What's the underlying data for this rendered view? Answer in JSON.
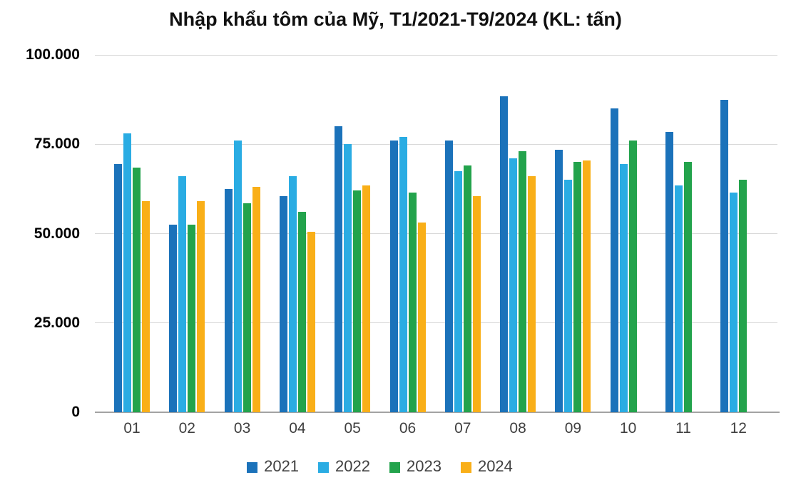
{
  "chart_data": {
    "type": "bar",
    "title": "Nhập khẩu tôm của Mỹ, T1/2021-T9/2024 (KL: tấn)",
    "unit": "tấn",
    "categories": [
      "01",
      "02",
      "03",
      "04",
      "05",
      "06",
      "07",
      "08",
      "09",
      "10",
      "11",
      "12"
    ],
    "series": [
      {
        "name": "2021",
        "color": "#1B72BA",
        "values": [
          69500,
          52500,
          62500,
          60500,
          80000,
          76000,
          76000,
          88500,
          73500,
          85000,
          78500,
          87500
        ]
      },
      {
        "name": "2022",
        "color": "#2AACE3",
        "values": [
          78000,
          66000,
          76000,
          66000,
          75000,
          77000,
          67500,
          71000,
          65000,
          69500,
          63500,
          61500
        ]
      },
      {
        "name": "2023",
        "color": "#23A34C",
        "values": [
          68500,
          52500,
          58500,
          56000,
          62000,
          61500,
          69000,
          73000,
          70000,
          76000,
          70000,
          65000
        ]
      },
      {
        "name": "2024",
        "color": "#F9AF18",
        "values": [
          59000,
          59000,
          63000,
          50500,
          63500,
          53000,
          60500,
          66000,
          70500,
          null,
          null,
          null
        ]
      }
    ],
    "ylim": [
      0,
      100000
    ],
    "yticks": [
      0,
      25000,
      50000,
      75000,
      100000
    ],
    "ytick_labels": [
      "0",
      "25.000",
      "50.000",
      "75.000",
      "100.000"
    ],
    "grid": true,
    "legend_position": "bottom",
    "xlabel": "",
    "ylabel": ""
  },
  "colors": {
    "background": "#ffffff",
    "gridline": "#d9d9d9",
    "axis_line": "#a3a3a3",
    "ytick_label": "#000000",
    "xtick_label": "#3f3f3f",
    "legend_label": "#404040",
    "title": "#111111"
  }
}
